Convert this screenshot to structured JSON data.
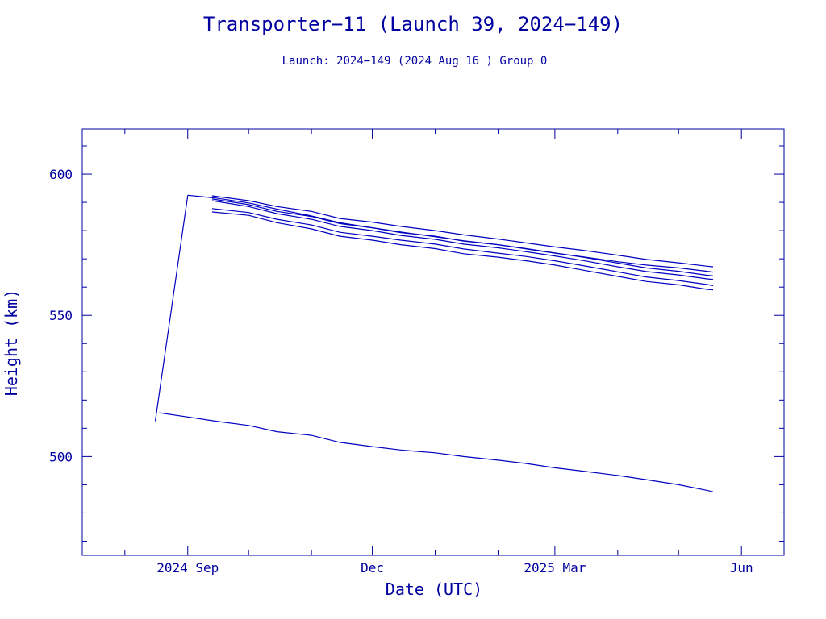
{
  "chart_data": {
    "type": "line",
    "title": "Transporter−11 (Launch 39, 2024−149)",
    "subtitle": "Launch: 2024−149  (2024 Aug 16 )  Group 0",
    "xlabel": "Date (UTC)",
    "ylabel": "Height (km)",
    "x_axis": {
      "type": "date",
      "range": [
        "2024-07-11",
        "2025-06-22"
      ],
      "ticks": [
        {
          "date": "2024-09-01",
          "label": "2024 Sep"
        },
        {
          "date": "2024-12-01",
          "label": "Dec"
        },
        {
          "date": "2025-03-01",
          "label": "2025 Mar"
        },
        {
          "date": "2025-06-01",
          "label": "Jun"
        }
      ]
    },
    "y_axis": {
      "range": [
        465,
        616
      ],
      "ticks": [
        500,
        550,
        600
      ]
    },
    "grid": false,
    "colors": {
      "axis": "#0000a0",
      "series": "#0000c0",
      "text": "#0000a0"
    },
    "series": [
      {
        "x": [
          "2024-08-18",
          "2024-09-01",
          "2024-09-15",
          "2024-10-01",
          "2024-10-15",
          "2024-11-01",
          "2024-11-15",
          "2024-12-01",
          "2024-12-15",
          "2025-01-01",
          "2025-01-15",
          "2025-02-01",
          "2025-02-15",
          "2025-03-01",
          "2025-03-15",
          "2025-04-01",
          "2025-04-15",
          "2025-05-01",
          "2025-05-15",
          "2025-05-18"
        ],
        "y": [
          515.5,
          514.0,
          512.5,
          511.0,
          508.8,
          507.5,
          505.0,
          503.5,
          502.3,
          501.3,
          500.0,
          498.7,
          497.5,
          496.0,
          494.8,
          493.3,
          491.8,
          490.0,
          488.0,
          487.5
        ]
      },
      {
        "x": [
          "2024-08-16",
          "2024-09-01"
        ],
        "y": [
          512.5,
          592.5
        ]
      },
      {
        "x": [
          "2024-09-01",
          "2024-09-15",
          "2024-10-01",
          "2024-10-15",
          "2024-11-01",
          "2024-11-15",
          "2024-12-01",
          "2024-12-15",
          "2025-01-01",
          "2025-01-15",
          "2025-02-01",
          "2025-02-15",
          "2025-03-01",
          "2025-03-15",
          "2025-04-01",
          "2025-04-15",
          "2025-05-01",
          "2025-05-15",
          "2025-05-18"
        ],
        "y": [
          592.5,
          591.5,
          589.8,
          587.6,
          585.2,
          582.8,
          581.0,
          579.5,
          577.8,
          576.4,
          575.0,
          573.5,
          572.0,
          570.7,
          569.0,
          567.8,
          566.8,
          565.6,
          565.3
        ]
      },
      {
        "x": [
          "2024-09-13",
          "2024-10-01",
          "2024-10-15",
          "2024-11-01",
          "2024-11-15",
          "2024-12-01",
          "2024-12-15",
          "2025-01-01",
          "2025-01-15",
          "2025-02-01",
          "2025-02-15",
          "2025-03-01",
          "2025-03-15",
          "2025-04-01",
          "2025-04-15",
          "2025-05-01",
          "2025-05-15",
          "2025-05-18"
        ],
        "y": [
          592.3,
          590.6,
          588.5,
          586.8,
          584.3,
          583.0,
          581.5,
          580.0,
          578.5,
          577.0,
          575.6,
          574.2,
          573.0,
          571.3,
          569.8,
          568.6,
          567.4,
          567.2
        ]
      },
      {
        "x": [
          "2024-09-13",
          "2024-10-01",
          "2024-10-15",
          "2024-11-01",
          "2024-11-15",
          "2024-12-01",
          "2024-12-15",
          "2025-01-01",
          "2025-01-15",
          "2025-02-01",
          "2025-02-15",
          "2025-03-01",
          "2025-03-15",
          "2025-04-01",
          "2025-04-15",
          "2025-05-01",
          "2025-05-15",
          "2025-05-18"
        ],
        "y": [
          591.2,
          589.2,
          586.8,
          585.0,
          582.5,
          581.0,
          579.3,
          578.0,
          576.3,
          575.0,
          573.6,
          572.1,
          570.6,
          568.5,
          566.8,
          565.6,
          564.2,
          564.0
        ]
      },
      {
        "x": [
          "2024-09-13",
          "2024-10-01",
          "2024-10-15",
          "2024-11-01",
          "2024-11-15",
          "2024-12-01",
          "2024-12-15",
          "2025-01-01",
          "2025-01-15",
          "2025-02-01",
          "2025-02-15",
          "2025-03-01",
          "2025-03-15",
          "2025-04-01",
          "2025-04-15",
          "2025-05-01",
          "2025-05-15",
          "2025-05-18"
        ],
        "y": [
          590.6,
          588.5,
          586.0,
          584.0,
          581.5,
          580.0,
          578.3,
          576.9,
          575.2,
          573.9,
          572.5,
          571.0,
          569.4,
          567.2,
          565.5,
          564.3,
          562.9,
          562.7
        ]
      },
      {
        "x": [
          "2024-09-13",
          "2024-10-01",
          "2024-10-15",
          "2024-11-01",
          "2024-11-15",
          "2024-12-01",
          "2024-12-15",
          "2025-01-01",
          "2025-01-15",
          "2025-02-01",
          "2025-02-15",
          "2025-03-01",
          "2025-03-15",
          "2025-04-01",
          "2025-04-15",
          "2025-05-01",
          "2025-05-15",
          "2025-05-18"
        ],
        "y": [
          587.8,
          586.4,
          584.0,
          582.0,
          579.4,
          578.0,
          576.6,
          575.2,
          573.5,
          572.0,
          570.8,
          569.3,
          567.6,
          565.4,
          563.6,
          562.3,
          560.9,
          560.5
        ]
      },
      {
        "x": [
          "2024-09-13",
          "2024-10-01",
          "2024-10-15",
          "2024-11-01",
          "2024-11-15",
          "2024-12-01",
          "2024-12-15",
          "2025-01-01",
          "2025-01-15",
          "2025-02-01",
          "2025-02-15",
          "2025-03-01",
          "2025-03-15",
          "2025-04-01",
          "2025-04-15",
          "2025-05-01",
          "2025-05-15",
          "2025-05-18"
        ],
        "y": [
          586.6,
          585.4,
          582.8,
          580.6,
          578.0,
          576.6,
          575.0,
          573.6,
          571.8,
          570.6,
          569.3,
          567.8,
          566.0,
          563.8,
          562.0,
          560.8,
          559.2,
          559.0
        ]
      }
    ]
  }
}
